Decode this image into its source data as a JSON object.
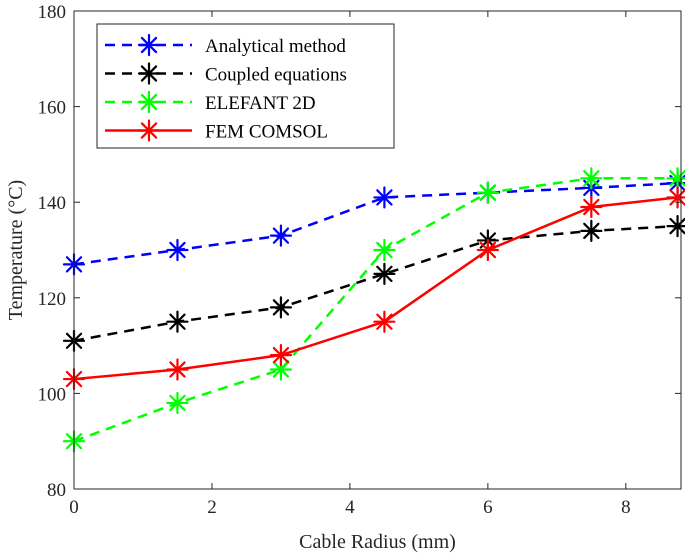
{
  "chart_data": {
    "type": "line",
    "title": "",
    "xlabel": "Cable Radius (mm)",
    "ylabel": "Temperature (°C)",
    "xlim": [
      0,
      8.8
    ],
    "ylim": [
      80,
      180
    ],
    "xticks": [
      0,
      2,
      4,
      6,
      8
    ],
    "yticks": [
      80,
      100,
      120,
      140,
      160,
      180
    ],
    "x": [
      0,
      1.5,
      3,
      4.5,
      6,
      7.5,
      8.75
    ],
    "legend_position": "top-left",
    "series": [
      {
        "name": "Analytical method",
        "color": "#0000ff",
        "dash": "dashed",
        "values": [
          127,
          130,
          133,
          141,
          142,
          143,
          144
        ]
      },
      {
        "name": "Coupled equations",
        "color": "#000000",
        "dash": "dashed",
        "values": [
          111,
          115,
          118,
          125,
          132,
          134,
          135
        ]
      },
      {
        "name": "ELEFANT 2D",
        "color": "#00ff00",
        "dash": "dashed",
        "values": [
          90,
          98,
          105,
          130,
          142,
          145,
          145
        ]
      },
      {
        "name": "FEM COMSOL",
        "color": "#ff0000",
        "dash": "solid",
        "values": [
          103,
          105,
          108,
          115,
          130,
          139,
          141
        ]
      }
    ]
  }
}
